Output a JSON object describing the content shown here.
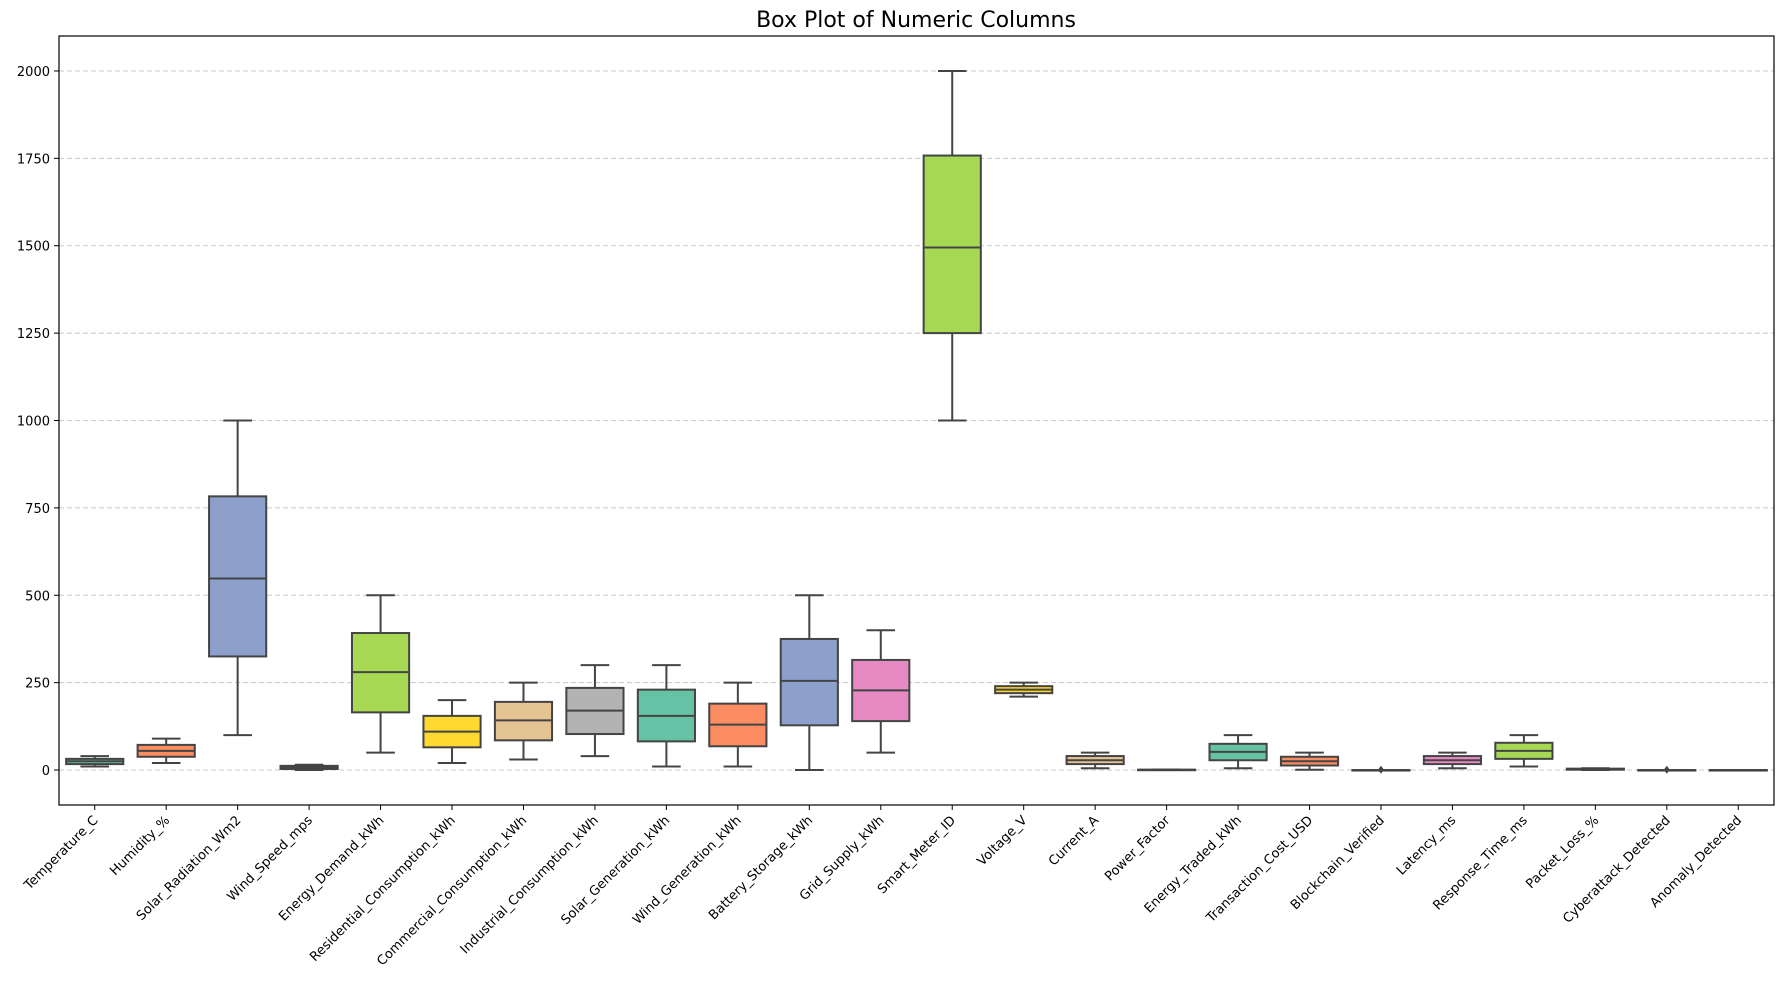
{
  "chart_data": {
    "type": "box",
    "title": "Box Plot of Numeric Columns",
    "xlabel": "",
    "ylabel": "",
    "ylim": [
      -100,
      2100
    ],
    "yticks": [
      0,
      250,
      500,
      750,
      1000,
      1250,
      1500,
      1750,
      2000
    ],
    "grid": "y-dashed",
    "legend": "none",
    "categories": [
      "Temperature_C",
      "Humidity_%",
      "Solar_Radiation_Wm2",
      "Wind_Speed_mps",
      "Energy_Demand_kWh",
      "Residential_Consumption_kWh",
      "Commercial_Consumption_kWh",
      "Industrial_Consumption_kWh",
      "Solar_Generation_kWh",
      "Wind_Generation_kWh",
      "Battery_Storage_kWh",
      "Grid_Supply_kWh",
      "Smart_Meter_ID",
      "Voltage_V",
      "Current_A",
      "Power_Factor",
      "Energy_Traded_kWh",
      "Transaction_Cost_USD",
      "Blockchain_Verified",
      "Latency_ms",
      "Response_Time_ms",
      "Packet_Loss_%",
      "Cyberattack_Detected",
      "Anomaly_Detected"
    ],
    "boxes": [
      {
        "min": 10,
        "q1": 17,
        "median": 25,
        "q3": 32,
        "max": 40,
        "color": "#66c2a5"
      },
      {
        "min": 20,
        "q1": 38,
        "median": 55,
        "q3": 72,
        "max": 90,
        "color": "#fc8d62"
      },
      {
        "min": 100,
        "q1": 325,
        "median": 548,
        "q3": 783,
        "max": 1000,
        "color": "#8da0cb"
      },
      {
        "min": 0,
        "q1": 3,
        "median": 8,
        "q3": 12,
        "max": 15,
        "color": "#e78ac3"
      },
      {
        "min": 50,
        "q1": 165,
        "median": 280,
        "q3": 392,
        "max": 500,
        "color": "#a6d854"
      },
      {
        "min": 20,
        "q1": 65,
        "median": 110,
        "q3": 155,
        "max": 200,
        "color": "#ffd92f"
      },
      {
        "min": 30,
        "q1": 85,
        "median": 142,
        "q3": 195,
        "max": 250,
        "color": "#e5c494"
      },
      {
        "min": 40,
        "q1": 103,
        "median": 170,
        "q3": 235,
        "max": 300,
        "color": "#b3b3b3"
      },
      {
        "min": 10,
        "q1": 82,
        "median": 155,
        "q3": 230,
        "max": 300,
        "color": "#66c2a5"
      },
      {
        "min": 10,
        "q1": 68,
        "median": 130,
        "q3": 190,
        "max": 250,
        "color": "#fc8d62"
      },
      {
        "min": 0,
        "q1": 128,
        "median": 255,
        "q3": 375,
        "max": 500,
        "color": "#8da0cb"
      },
      {
        "min": 50,
        "q1": 140,
        "median": 228,
        "q3": 315,
        "max": 400,
        "color": "#e78ac3"
      },
      {
        "min": 1000,
        "q1": 1250,
        "median": 1495,
        "q3": 1758,
        "max": 2000,
        "color": "#a6d854"
      },
      {
        "min": 210,
        "q1": 220,
        "median": 230,
        "q3": 240,
        "max": 250,
        "color": "#ffd92f"
      },
      {
        "min": 5,
        "q1": 17,
        "median": 28,
        "q3": 40,
        "max": 50,
        "color": "#e5c494"
      },
      {
        "min": 0.8,
        "q1": 0.85,
        "median": 0.9,
        "q3": 0.95,
        "max": 1.0,
        "color": "#b3b3b3"
      },
      {
        "min": 5,
        "q1": 28,
        "median": 52,
        "q3": 75,
        "max": 100,
        "color": "#66c2a5"
      },
      {
        "min": 1,
        "q1": 13,
        "median": 25,
        "q3": 38,
        "max": 50,
        "color": "#fc8d62"
      },
      {
        "min": 0,
        "q1": 0,
        "median": 0,
        "q3": 0,
        "max": 0,
        "color": "#8da0cb",
        "outliers": [
          1
        ]
      },
      {
        "min": 5,
        "q1": 17,
        "median": 28,
        "q3": 40,
        "max": 50,
        "color": "#e78ac3"
      },
      {
        "min": 10,
        "q1": 32,
        "median": 55,
        "q3": 78,
        "max": 100,
        "color": "#a6d854"
      },
      {
        "min": 0,
        "q1": 1,
        "median": 2.5,
        "q3": 4,
        "max": 5,
        "color": "#ffd92f"
      },
      {
        "min": 0,
        "q1": 0,
        "median": 0,
        "q3": 0,
        "max": 0,
        "color": "#e5c494",
        "outliers": [
          1
        ]
      },
      {
        "min": 0,
        "q1": 0,
        "median": 0,
        "q3": 0,
        "max": 0,
        "color": "#b3b3b3"
      }
    ]
  }
}
